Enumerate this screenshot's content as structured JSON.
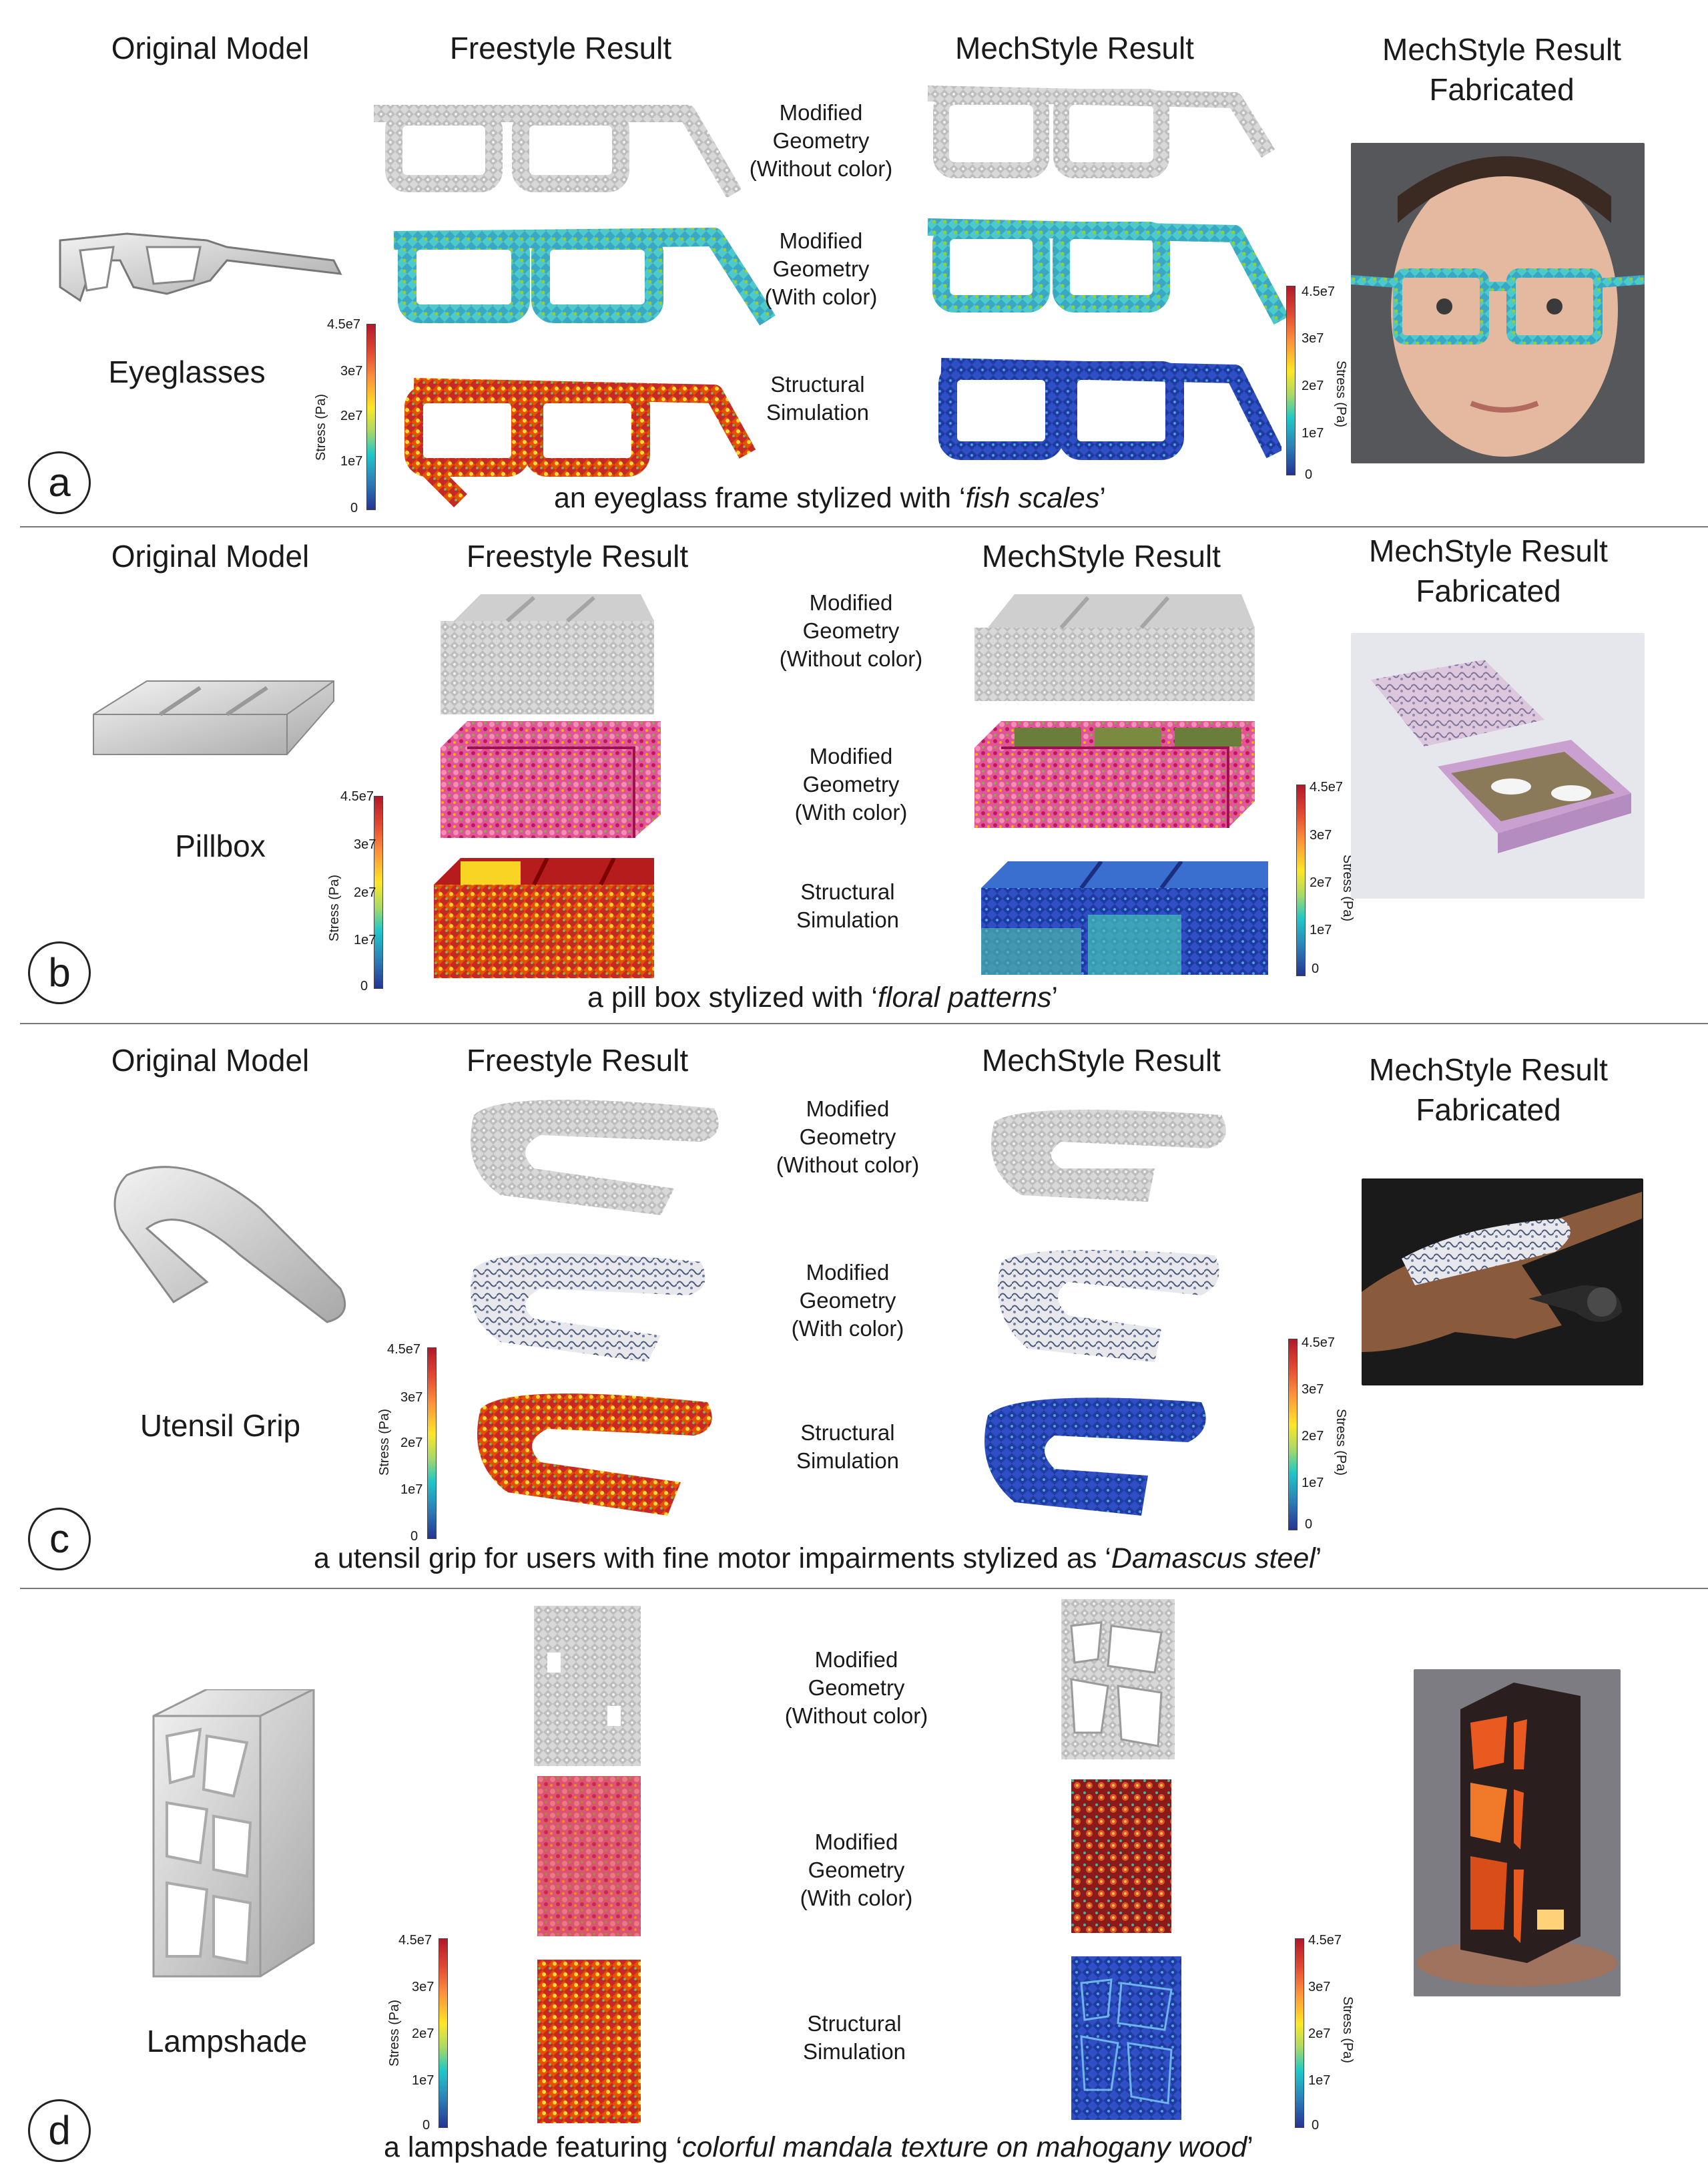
{
  "headers": {
    "original": "Original Model",
    "freestyle": "Freestyle Result",
    "mechstyle": "MechStyle Result",
    "fabricated_line1": "MechStyle Result",
    "fabricated_line2": "Fabricated"
  },
  "row_labels": {
    "without_color": [
      "Modified",
      "Geometry",
      "(Without color)"
    ],
    "with_color": [
      "Modified",
      "Geometry",
      "(With color)"
    ],
    "simulation": [
      "Structural",
      "Simulation"
    ]
  },
  "colorbar": {
    "ticks": [
      "4.5e7",
      "3e7",
      "2e7",
      "1e7",
      "0"
    ],
    "unit": "Stress (Pa)",
    "colors": [
      "#b2182b",
      "#fde725",
      "#1fc8c8",
      "#253494"
    ]
  },
  "panels": [
    {
      "letter": "a",
      "object": "Eyeglasses",
      "caption_pre": "an eyeglass frame stylized with ‘",
      "caption_style": "fish scales",
      "caption_post": "’"
    },
    {
      "letter": "b",
      "object": "Pillbox",
      "caption_pre": "a pill box stylized with ‘",
      "caption_style": "floral patterns",
      "caption_post": "’"
    },
    {
      "letter": "c",
      "object": "Utensil Grip",
      "caption_pre": "a utensil grip for users with fine motor impairments stylized as ‘",
      "caption_style": "Damascus steel",
      "caption_post": "’"
    },
    {
      "letter": "d",
      "object": "Lampshade",
      "caption_pre": "a lampshade featuring ‘",
      "caption_style": "colorful mandala texture on mahogany wood",
      "caption_post": "’"
    }
  ]
}
